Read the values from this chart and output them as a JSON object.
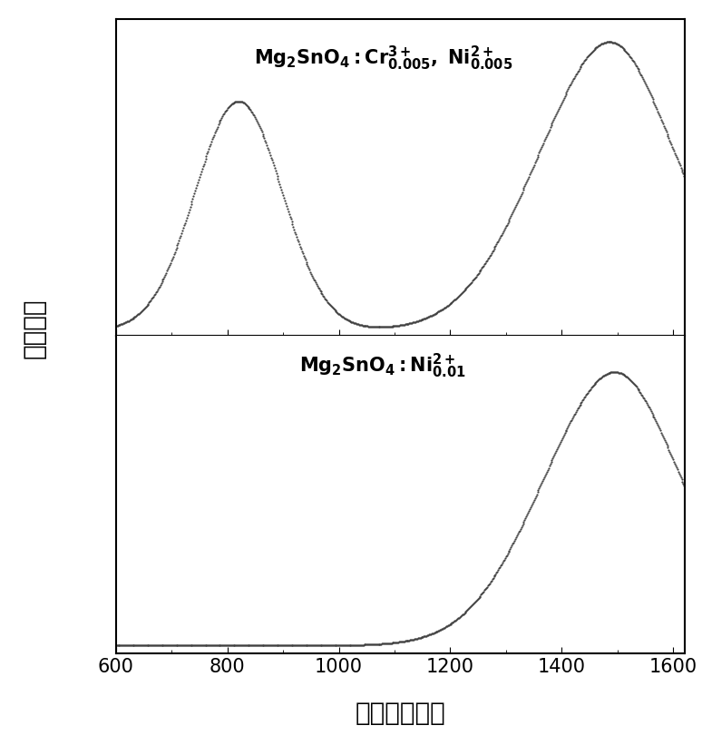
{
  "xlabel": "波长（纳米）",
  "ylabel": "相对强度",
  "xticks": [
    600,
    800,
    1000,
    1200,
    1400,
    1600
  ],
  "xlim": [
    600,
    1620
  ],
  "background_color": "#ffffff",
  "line_color": "#404040",
  "label_top": "$\\mathbf{Mg_2SnO_4:Cr^{3+}_{0.005},\\ Ni^{2+}_{0.005}}$",
  "label_bottom": "$\\mathbf{Mg_2SnO_4:Ni^{2+}_{0.01}}$",
  "xlabel_fontsize": 20,
  "ylabel_fontsize": 20,
  "annotation_fontsize": 15,
  "tick_fontsize": 15
}
